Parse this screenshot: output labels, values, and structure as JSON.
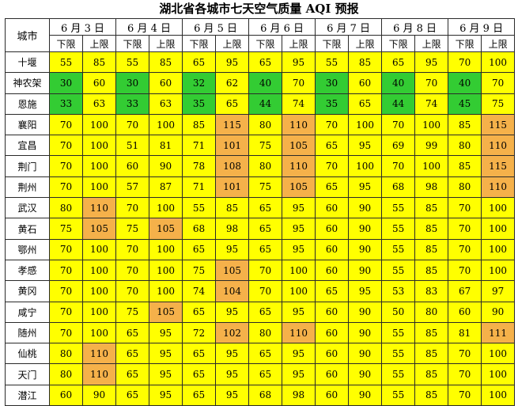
{
  "title": "湖北省各城市七天空气质量 AQI 预报",
  "city_header": "城市",
  "dates": [
    "6 月 3 日",
    "6 月 4 日",
    "6 月 5 日",
    "6 月 6 日",
    "6 月 7 日",
    "6 月 8 日",
    "6 月 9 日"
  ],
  "lower_label": "下限",
  "upper_label": "上限",
  "colors": {
    "good": "#33cc33",
    "moderate": "#ffff00",
    "sensitive": "#f5b14a"
  },
  "rows": [
    {
      "city": "十堰",
      "values": [
        "55",
        "85",
        "55",
        "85",
        "65",
        "95",
        "65",
        "95",
        "55",
        "85",
        "65",
        "95",
        "70",
        "100"
      ],
      "levels": [
        "y",
        "y",
        "y",
        "y",
        "y",
        "y",
        "y",
        "y",
        "y",
        "y",
        "y",
        "y",
        "y",
        "y"
      ]
    },
    {
      "city": "神农架",
      "values": [
        "30",
        "60",
        "30",
        "60",
        "32",
        "62",
        "40",
        "70",
        "30",
        "60",
        "40",
        "70",
        "40",
        "70"
      ],
      "levels": [
        "g",
        "y",
        "g",
        "y",
        "g",
        "y",
        "g",
        "y",
        "g",
        "y",
        "g",
        "y",
        "g",
        "y"
      ]
    },
    {
      "city": "恩施",
      "values": [
        "33",
        "63",
        "33",
        "63",
        "35",
        "65",
        "44",
        "74",
        "35",
        "65",
        "44",
        "74",
        "45",
        "75"
      ],
      "levels": [
        "g",
        "y",
        "g",
        "y",
        "g",
        "y",
        "g",
        "y",
        "g",
        "y",
        "g",
        "y",
        "g",
        "y"
      ]
    },
    {
      "city": "襄阳",
      "values": [
        "70",
        "100",
        "70",
        "100",
        "85",
        "115",
        "80",
        "110",
        "70",
        "100",
        "70",
        "100",
        "85",
        "115"
      ],
      "levels": [
        "y",
        "y",
        "y",
        "y",
        "y",
        "o",
        "y",
        "o",
        "y",
        "y",
        "y",
        "y",
        "y",
        "o"
      ]
    },
    {
      "city": "宜昌",
      "values": [
        "70",
        "100",
        "51",
        "81",
        "71",
        "101",
        "75",
        "105",
        "65",
        "95",
        "69",
        "99",
        "80",
        "110"
      ],
      "levels": [
        "y",
        "y",
        "y",
        "y",
        "y",
        "o",
        "y",
        "o",
        "y",
        "y",
        "y",
        "y",
        "y",
        "o"
      ]
    },
    {
      "city": "荆门",
      "values": [
        "70",
        "100",
        "60",
        "90",
        "78",
        "108",
        "80",
        "110",
        "70",
        "100",
        "70",
        "100",
        "85",
        "115"
      ],
      "levels": [
        "y",
        "y",
        "y",
        "y",
        "y",
        "o",
        "y",
        "o",
        "y",
        "y",
        "y",
        "y",
        "y",
        "o"
      ]
    },
    {
      "city": "荆州",
      "values": [
        "70",
        "100",
        "57",
        "87",
        "71",
        "101",
        "75",
        "105",
        "65",
        "95",
        "68",
        "98",
        "80",
        "110"
      ],
      "levels": [
        "y",
        "y",
        "y",
        "y",
        "y",
        "o",
        "y",
        "o",
        "y",
        "y",
        "y",
        "y",
        "y",
        "o"
      ]
    },
    {
      "city": "武汉",
      "values": [
        "80",
        "110",
        "70",
        "100",
        "55",
        "85",
        "65",
        "95",
        "60",
        "90",
        "55",
        "85",
        "70",
        "100"
      ],
      "levels": [
        "y",
        "o",
        "y",
        "y",
        "y",
        "y",
        "y",
        "y",
        "y",
        "y",
        "y",
        "y",
        "y",
        "y"
      ]
    },
    {
      "city": "黄石",
      "values": [
        "75",
        "105",
        "75",
        "105",
        "68",
        "98",
        "65",
        "95",
        "60",
        "90",
        "55",
        "85",
        "70",
        "100"
      ],
      "levels": [
        "y",
        "o",
        "y",
        "o",
        "y",
        "y",
        "y",
        "y",
        "y",
        "y",
        "y",
        "y",
        "y",
        "y"
      ]
    },
    {
      "city": "鄂州",
      "values": [
        "70",
        "100",
        "70",
        "100",
        "65",
        "95",
        "65",
        "95",
        "60",
        "90",
        "55",
        "85",
        "70",
        "100"
      ],
      "levels": [
        "y",
        "y",
        "y",
        "y",
        "y",
        "y",
        "y",
        "y",
        "y",
        "y",
        "y",
        "y",
        "y",
        "y"
      ]
    },
    {
      "city": "孝感",
      "values": [
        "70",
        "100",
        "70",
        "100",
        "75",
        "105",
        "70",
        "100",
        "60",
        "90",
        "55",
        "85",
        "70",
        "100"
      ],
      "levels": [
        "y",
        "y",
        "y",
        "y",
        "y",
        "o",
        "y",
        "y",
        "y",
        "y",
        "y",
        "y",
        "y",
        "y"
      ]
    },
    {
      "city": "黄冈",
      "values": [
        "70",
        "100",
        "70",
        "100",
        "74",
        "104",
        "70",
        "100",
        "65",
        "95",
        "53",
        "83",
        "67",
        "97"
      ],
      "levels": [
        "y",
        "y",
        "y",
        "y",
        "y",
        "o",
        "y",
        "y",
        "y",
        "y",
        "y",
        "y",
        "y",
        "y"
      ]
    },
    {
      "city": "咸宁",
      "values": [
        "70",
        "100",
        "75",
        "105",
        "65",
        "95",
        "65",
        "95",
        "60",
        "90",
        "50",
        "80",
        "60",
        "90"
      ],
      "levels": [
        "y",
        "y",
        "y",
        "o",
        "y",
        "y",
        "y",
        "y",
        "y",
        "y",
        "y",
        "y",
        "y",
        "y"
      ]
    },
    {
      "city": "随州",
      "values": [
        "70",
        "100",
        "65",
        "95",
        "72",
        "102",
        "80",
        "110",
        "60",
        "90",
        "55",
        "85",
        "81",
        "111"
      ],
      "levels": [
        "y",
        "y",
        "y",
        "y",
        "y",
        "o",
        "y",
        "o",
        "y",
        "y",
        "y",
        "y",
        "y",
        "o"
      ]
    },
    {
      "city": "仙桃",
      "values": [
        "80",
        "110",
        "65",
        "95",
        "65",
        "95",
        "65",
        "95",
        "60",
        "90",
        "55",
        "85",
        "70",
        "100"
      ],
      "levels": [
        "y",
        "o",
        "y",
        "y",
        "y",
        "y",
        "y",
        "y",
        "y",
        "y",
        "y",
        "y",
        "y",
        "y"
      ]
    },
    {
      "city": "天门",
      "values": [
        "80",
        "110",
        "65",
        "95",
        "65",
        "95",
        "65",
        "95",
        "60",
        "90",
        "55",
        "85",
        "70",
        "100"
      ],
      "levels": [
        "y",
        "o",
        "y",
        "y",
        "y",
        "y",
        "y",
        "y",
        "y",
        "y",
        "y",
        "y",
        "y",
        "y"
      ]
    },
    {
      "city": "潜江",
      "values": [
        "60",
        "90",
        "65",
        "95",
        "65",
        "95",
        "68",
        "98",
        "60",
        "90",
        "55",
        "85",
        "70",
        "100"
      ],
      "levels": [
        "y",
        "y",
        "y",
        "y",
        "y",
        "y",
        "y",
        "y",
        "y",
        "y",
        "y",
        "y",
        "y",
        "y"
      ]
    }
  ]
}
